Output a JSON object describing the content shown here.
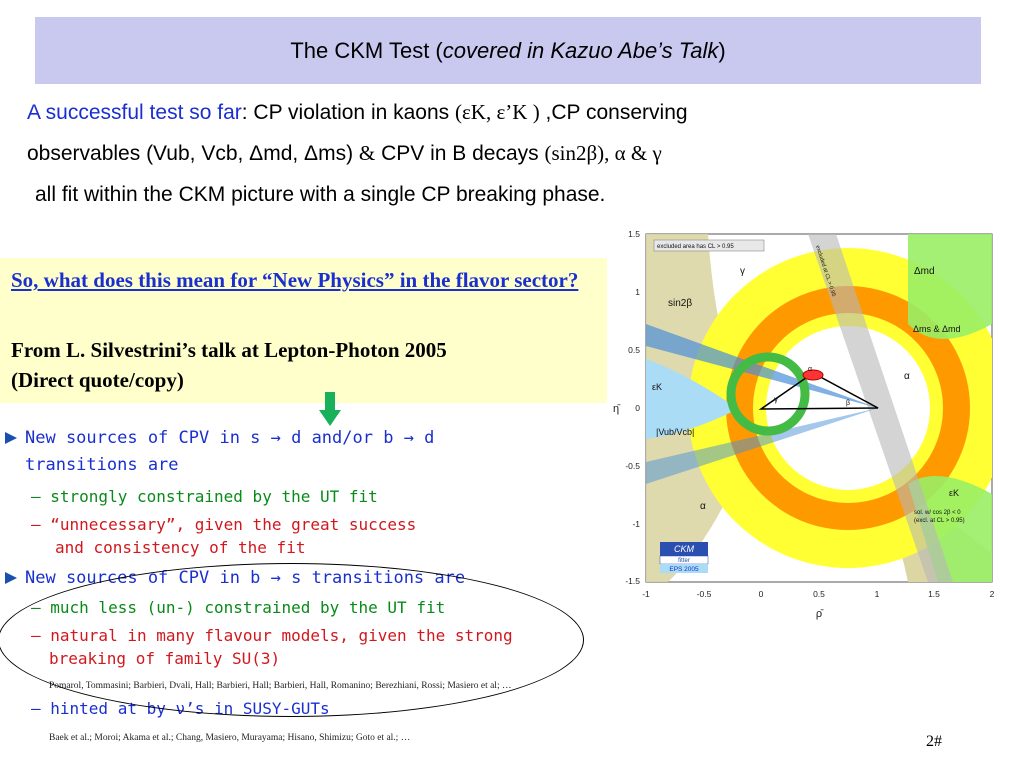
{
  "title": {
    "prefix": "The CKM Test  (",
    "italic": "covered in Kazuo Abe’s Talk",
    "suffix": ")"
  },
  "intro": {
    "highlight": "A successful test so far",
    "line1_rest": ": CP violation in kaons ",
    "line1_sym": "(εK, ε’K )",
    "line1_end": " ,CP conserving",
    "line2_a": "observables (Vub, Vcb, ",
    "line2_sym1": "Δmd",
    "line2_b": ", ",
    "line2_sym2": "Δms",
    "line2_c": ") ",
    "line2_amp": "&",
    "line2_d": "    CPV in B decays ",
    "line2_sym3": "(sin2β), α & γ",
    "line3": "all fit within the CKM picture with a single CP breaking phase."
  },
  "quote": {
    "question": "So, what does this mean for “New Physics” in the flavor sector?",
    "source_line1": " From L. Silvestrini’s talk at Lepton-Photon 2005",
    "source_line2": "(Direct quote/copy)"
  },
  "bullets": {
    "b1_line1": "New sources of CPV in s → d and/or b → d",
    "b1_line2": "transitions are",
    "b1_sub1": "– strongly constrained by the UT fit",
    "b1_sub2_l1": "– “unnecessary”, given the great success",
    "b1_sub2_l2": "and consistency of the fit",
    "b2_line1": "New sources of CPV in b → s transitions are",
    "b2_sub1": "– much less (un-) constrained by the UT fit",
    "b2_sub2_l1": "– natural in many flavour models, given the strong",
    "b2_sub2_l2": "breaking of family SU(3)",
    "ref1": "Pomarol, Tommasini; Barbieri, Dvali, Hall; Barbieri, Hall; Barbieri, Hall, Romanino;  Berezhiani, Rossi; Masiero et al; …",
    "b2_sub3": "– hinted at by ν’s in SUSY-GUTs",
    "ref2": "Baek et al.; Moroi; Akama et al.; Chang, Masiero, Murayama; Hisano, Shimizu; Goto et al.; …"
  },
  "page_number": "2#",
  "plot": {
    "y_ticks": [
      "1.5",
      "1",
      "0.5",
      "0",
      "-0.5",
      "-1",
      "-1.5"
    ],
    "x_ticks": [
      "-1",
      "-0.5",
      "0",
      "0.5",
      "1",
      "1.5",
      "2"
    ],
    "y_axis_label": "η̄",
    "x_axis_label": "ρ̄",
    "legend_excluded": "excluded area has CL > 0.95",
    "excluded_label": "excluded at CL > 0.95",
    "labels": {
      "dmd": "Δmd",
      "dms_dmd": "Δms & Δmd",
      "sin2b": "sin2β",
      "eps_top": "εK",
      "eps_bottom": "εK",
      "vub": "|Vub/Vcb|",
      "alpha_right": "α",
      "alpha_left": "α",
      "gamma_top": "γ",
      "gamma_small": "γ",
      "alpha_small": "α",
      "beta_small": "β",
      "sol_line1": "sol. w/ cos 2β < 0",
      "sol_line2": "(excl. at CL > 0.95)",
      "logo_top": "CKM",
      "logo_mid": "fitter",
      "logo_bottom": "EPS 2005"
    }
  },
  "colors": {
    "title_bg": "#c9c9f0",
    "quote_bg": "#ffffcc",
    "blue_text": "#1a2fd0",
    "green_text": "#0a8a1a",
    "red_text": "#d0181e"
  }
}
